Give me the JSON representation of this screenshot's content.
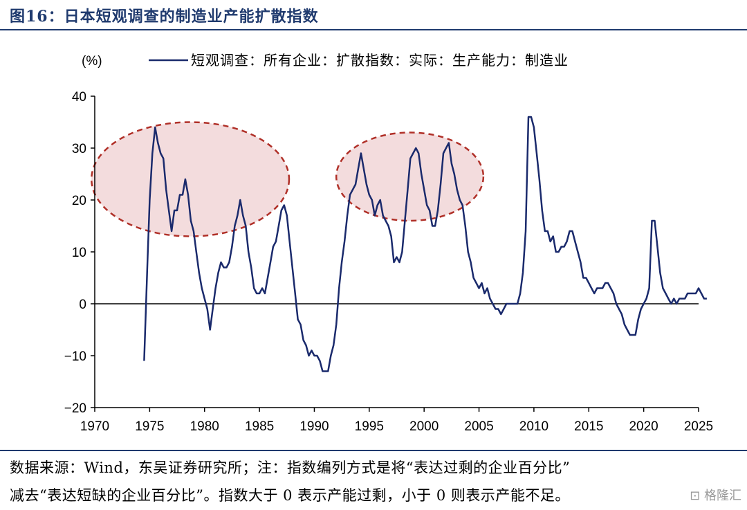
{
  "figure": {
    "title": "图16：日本短观调查的制造业产能扩散指数",
    "note_line1": "数据来源：Wind，东吴证券研究所；注：指数编列方式是将“表达过剩的企业百分比”",
    "note_line2": "减去“表达短缺的企业百分比”。指数大于 0 表示产能过剩，小于 0 则表示产能不足。",
    "watermark": "格隆汇"
  },
  "chart_data": {
    "type": "line",
    "ylabel": "(%)",
    "ylim": [
      -20,
      40
    ],
    "y_ticks": [
      -20,
      -10,
      0,
      10,
      20,
      30,
      40
    ],
    "xlim": [
      1970,
      2025
    ],
    "x_ticks": [
      1970,
      1975,
      1980,
      1985,
      1990,
      1995,
      2000,
      2005,
      2010,
      2015,
      2020,
      2025
    ],
    "legend_position": "top",
    "grid": false,
    "colors": {
      "line": "#1a2a6c",
      "ellipse_fill": "#f3dcdd",
      "ellipse_stroke": "#b03028",
      "axis": "#000000"
    },
    "series": [
      {
        "name": "短观调查：所有企业：扩散指数：实际：生产能力：制造业",
        "points": [
          [
            1974.5,
            -11
          ],
          [
            1974.8,
            8
          ],
          [
            1975.0,
            20
          ],
          [
            1975.25,
            29
          ],
          [
            1975.5,
            34
          ],
          [
            1975.75,
            31
          ],
          [
            1976.0,
            29
          ],
          [
            1976.25,
            28
          ],
          [
            1976.5,
            22
          ],
          [
            1976.75,
            18
          ],
          [
            1977.0,
            14
          ],
          [
            1977.25,
            18
          ],
          [
            1977.5,
            18
          ],
          [
            1977.75,
            21
          ],
          [
            1978.0,
            21
          ],
          [
            1978.25,
            24
          ],
          [
            1978.5,
            21
          ],
          [
            1978.75,
            16
          ],
          [
            1979.0,
            14
          ],
          [
            1979.25,
            10
          ],
          [
            1979.5,
            6
          ],
          [
            1979.75,
            3
          ],
          [
            1980.0,
            1
          ],
          [
            1980.25,
            -1
          ],
          [
            1980.5,
            -5
          ],
          [
            1980.75,
            -1
          ],
          [
            1981.0,
            3
          ],
          [
            1981.25,
            6
          ],
          [
            1981.5,
            8
          ],
          [
            1981.75,
            7
          ],
          [
            1982.0,
            7
          ],
          [
            1982.25,
            8
          ],
          [
            1982.5,
            11
          ],
          [
            1982.75,
            15
          ],
          [
            1983.0,
            17
          ],
          [
            1983.25,
            20
          ],
          [
            1983.5,
            17
          ],
          [
            1983.75,
            15
          ],
          [
            1984.0,
            10
          ],
          [
            1984.25,
            7
          ],
          [
            1984.5,
            3
          ],
          [
            1984.75,
            2
          ],
          [
            1985.0,
            2
          ],
          [
            1985.25,
            3
          ],
          [
            1985.5,
            2
          ],
          [
            1985.75,
            5
          ],
          [
            1986.0,
            8
          ],
          [
            1986.25,
            11
          ],
          [
            1986.5,
            12
          ],
          [
            1986.75,
            15
          ],
          [
            1987.0,
            18
          ],
          [
            1987.25,
            19
          ],
          [
            1987.5,
            17
          ],
          [
            1987.75,
            12
          ],
          [
            1988.0,
            7
          ],
          [
            1988.25,
            2
          ],
          [
            1988.5,
            -3
          ],
          [
            1988.75,
            -4
          ],
          [
            1989.0,
            -7
          ],
          [
            1989.25,
            -8
          ],
          [
            1989.5,
            -10
          ],
          [
            1989.75,
            -9
          ],
          [
            1990.0,
            -10
          ],
          [
            1990.25,
            -10
          ],
          [
            1990.5,
            -11
          ],
          [
            1990.75,
            -13
          ],
          [
            1991.0,
            -13
          ],
          [
            1991.25,
            -13
          ],
          [
            1991.5,
            -10
          ],
          [
            1991.75,
            -8
          ],
          [
            1992.0,
            -4
          ],
          [
            1992.25,
            3
          ],
          [
            1992.5,
            8
          ],
          [
            1992.75,
            12
          ],
          [
            1993.0,
            17
          ],
          [
            1993.25,
            21
          ],
          [
            1993.5,
            22
          ],
          [
            1993.75,
            23
          ],
          [
            1994.0,
            26
          ],
          [
            1994.25,
            29
          ],
          [
            1994.5,
            26
          ],
          [
            1994.75,
            23
          ],
          [
            1995.0,
            21
          ],
          [
            1995.25,
            20
          ],
          [
            1995.5,
            17
          ],
          [
            1995.75,
            19
          ],
          [
            1996.0,
            20
          ],
          [
            1996.25,
            17
          ],
          [
            1996.5,
            16
          ],
          [
            1996.75,
            15
          ],
          [
            1997.0,
            13
          ],
          [
            1997.25,
            8
          ],
          [
            1997.5,
            9
          ],
          [
            1997.75,
            8
          ],
          [
            1998.0,
            10
          ],
          [
            1998.25,
            16
          ],
          [
            1998.5,
            22
          ],
          [
            1998.75,
            28
          ],
          [
            1999.0,
            29
          ],
          [
            1999.25,
            30
          ],
          [
            1999.5,
            29
          ],
          [
            1999.75,
            25
          ],
          [
            2000.0,
            22
          ],
          [
            2000.25,
            19
          ],
          [
            2000.5,
            18
          ],
          [
            2000.75,
            15
          ],
          [
            2001.0,
            15
          ],
          [
            2001.25,
            18
          ],
          [
            2001.5,
            23
          ],
          [
            2001.75,
            29
          ],
          [
            2002.0,
            30
          ],
          [
            2002.25,
            31
          ],
          [
            2002.5,
            27
          ],
          [
            2002.75,
            25
          ],
          [
            2003.0,
            22
          ],
          [
            2003.25,
            20
          ],
          [
            2003.5,
            19
          ],
          [
            2003.75,
            15
          ],
          [
            2004.0,
            10
          ],
          [
            2004.25,
            8
          ],
          [
            2004.5,
            5
          ],
          [
            2004.75,
            4
          ],
          [
            2005.0,
            3
          ],
          [
            2005.25,
            4
          ],
          [
            2005.5,
            2
          ],
          [
            2005.75,
            3
          ],
          [
            2006.0,
            1
          ],
          [
            2006.25,
            0
          ],
          [
            2006.5,
            -1
          ],
          [
            2006.75,
            -1
          ],
          [
            2007.0,
            -2
          ],
          [
            2007.25,
            -1
          ],
          [
            2007.5,
            0
          ],
          [
            2007.75,
            0
          ],
          [
            2008.0,
            0
          ],
          [
            2008.25,
            0
          ],
          [
            2008.5,
            0
          ],
          [
            2008.75,
            2
          ],
          [
            2009.0,
            6
          ],
          [
            2009.25,
            14
          ],
          [
            2009.5,
            36
          ],
          [
            2009.75,
            36
          ],
          [
            2010.0,
            34
          ],
          [
            2010.25,
            29
          ],
          [
            2010.5,
            24
          ],
          [
            2010.75,
            18
          ],
          [
            2011.0,
            14
          ],
          [
            2011.25,
            14
          ],
          [
            2011.5,
            12
          ],
          [
            2011.75,
            13
          ],
          [
            2012.0,
            10
          ],
          [
            2012.25,
            10
          ],
          [
            2012.5,
            11
          ],
          [
            2012.75,
            11
          ],
          [
            2013.0,
            12
          ],
          [
            2013.25,
            14
          ],
          [
            2013.5,
            14
          ],
          [
            2013.75,
            12
          ],
          [
            2014.0,
            10
          ],
          [
            2014.25,
            8
          ],
          [
            2014.5,
            5
          ],
          [
            2014.75,
            5
          ],
          [
            2015.0,
            4
          ],
          [
            2015.25,
            3
          ],
          [
            2015.5,
            2
          ],
          [
            2015.75,
            3
          ],
          [
            2016.0,
            3
          ],
          [
            2016.25,
            3
          ],
          [
            2016.5,
            4
          ],
          [
            2016.75,
            4
          ],
          [
            2017.0,
            3
          ],
          [
            2017.25,
            2
          ],
          [
            2017.5,
            0
          ],
          [
            2017.75,
            -1
          ],
          [
            2018.0,
            -2
          ],
          [
            2018.25,
            -4
          ],
          [
            2018.5,
            -5
          ],
          [
            2018.75,
            -6
          ],
          [
            2019.0,
            -6
          ],
          [
            2019.25,
            -6
          ],
          [
            2019.5,
            -3
          ],
          [
            2019.75,
            -1
          ],
          [
            2020.0,
            0
          ],
          [
            2020.25,
            1
          ],
          [
            2020.5,
            3
          ],
          [
            2020.75,
            16
          ],
          [
            2021.0,
            16
          ],
          [
            2021.25,
            11
          ],
          [
            2021.5,
            6
          ],
          [
            2021.75,
            3
          ],
          [
            2022.0,
            2
          ],
          [
            2022.25,
            1
          ],
          [
            2022.5,
            0
          ],
          [
            2022.75,
            1
          ],
          [
            2023.0,
            0
          ],
          [
            2023.25,
            1
          ],
          [
            2023.5,
            1
          ],
          [
            2023.75,
            1
          ],
          [
            2024.0,
            2
          ],
          [
            2024.25,
            2
          ],
          [
            2024.5,
            2
          ],
          [
            2024.75,
            2
          ],
          [
            2025.0,
            3
          ],
          [
            2025.25,
            2
          ],
          [
            2025.5,
            1
          ],
          [
            2025.75,
            1
          ]
        ]
      }
    ],
    "annotations": [
      {
        "type": "ellipse",
        "center": [
          1978.7,
          24
        ],
        "radius": [
          9.0,
          11.0
        ]
      },
      {
        "type": "ellipse",
        "center": [
          1998.7,
          24.5
        ],
        "radius": [
          6.7,
          8.5
        ]
      }
    ]
  }
}
